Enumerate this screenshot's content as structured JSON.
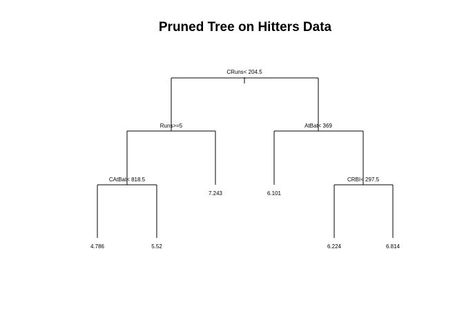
{
  "title": "Pruned Tree on Hitters Data",
  "tree": {
    "root_split": "CRuns< 204.5",
    "left_split": "Runs>=5",
    "right_split": "AtBat< 369",
    "left_left_split": "CAtBat< 818.5",
    "right_right_split": "CRBI< 297.5",
    "leaves": {
      "ll_l": "4.786",
      "ll_r": "5.52",
      "l_r": "7.243",
      "r_l": "6.101",
      "rr_l": "6.224",
      "rr_r": "6.814"
    }
  },
  "colors": {
    "lines": "#000000",
    "background": "#ffffff"
  }
}
